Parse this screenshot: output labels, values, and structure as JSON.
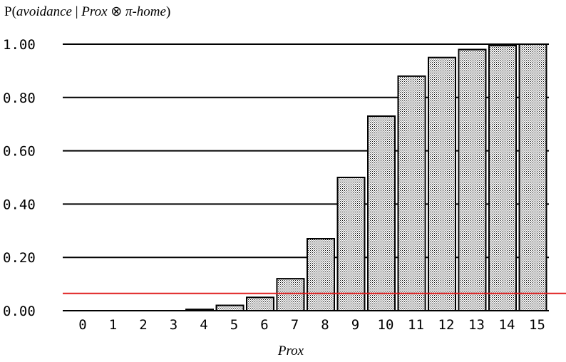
{
  "chart_data": {
    "type": "bar",
    "title_prefix": "P(",
    "title_italic": "avoidance",
    "title_mid": " | ",
    "title_italic2": "Prox",
    "title_otimes": " ⊗ ",
    "title_italic3": "π-home",
    "title_suffix": ")",
    "xlabel": "Prox",
    "ylabel": "",
    "categories": [
      "0",
      "1",
      "2",
      "3",
      "4",
      "5",
      "6",
      "7",
      "8",
      "9",
      "10",
      "11",
      "12",
      "13",
      "14",
      "15"
    ],
    "values": [
      0.0,
      0.0,
      0.0,
      0.0,
      0.005,
      0.02,
      0.05,
      0.12,
      0.27,
      0.5,
      0.73,
      0.88,
      0.95,
      0.98,
      0.995,
      1.0
    ],
    "ylim": [
      0,
      1.0
    ],
    "yticks": [
      "0.00",
      "0.20",
      "0.40",
      "0.60",
      "0.80",
      "1.00"
    ],
    "ytick_values": [
      0,
      0.2,
      0.4,
      0.6,
      0.8,
      1.0
    ],
    "reference_line": 0.065,
    "reference_line_color": "#e02020",
    "grid": true,
    "bar_pattern": "stippled"
  }
}
